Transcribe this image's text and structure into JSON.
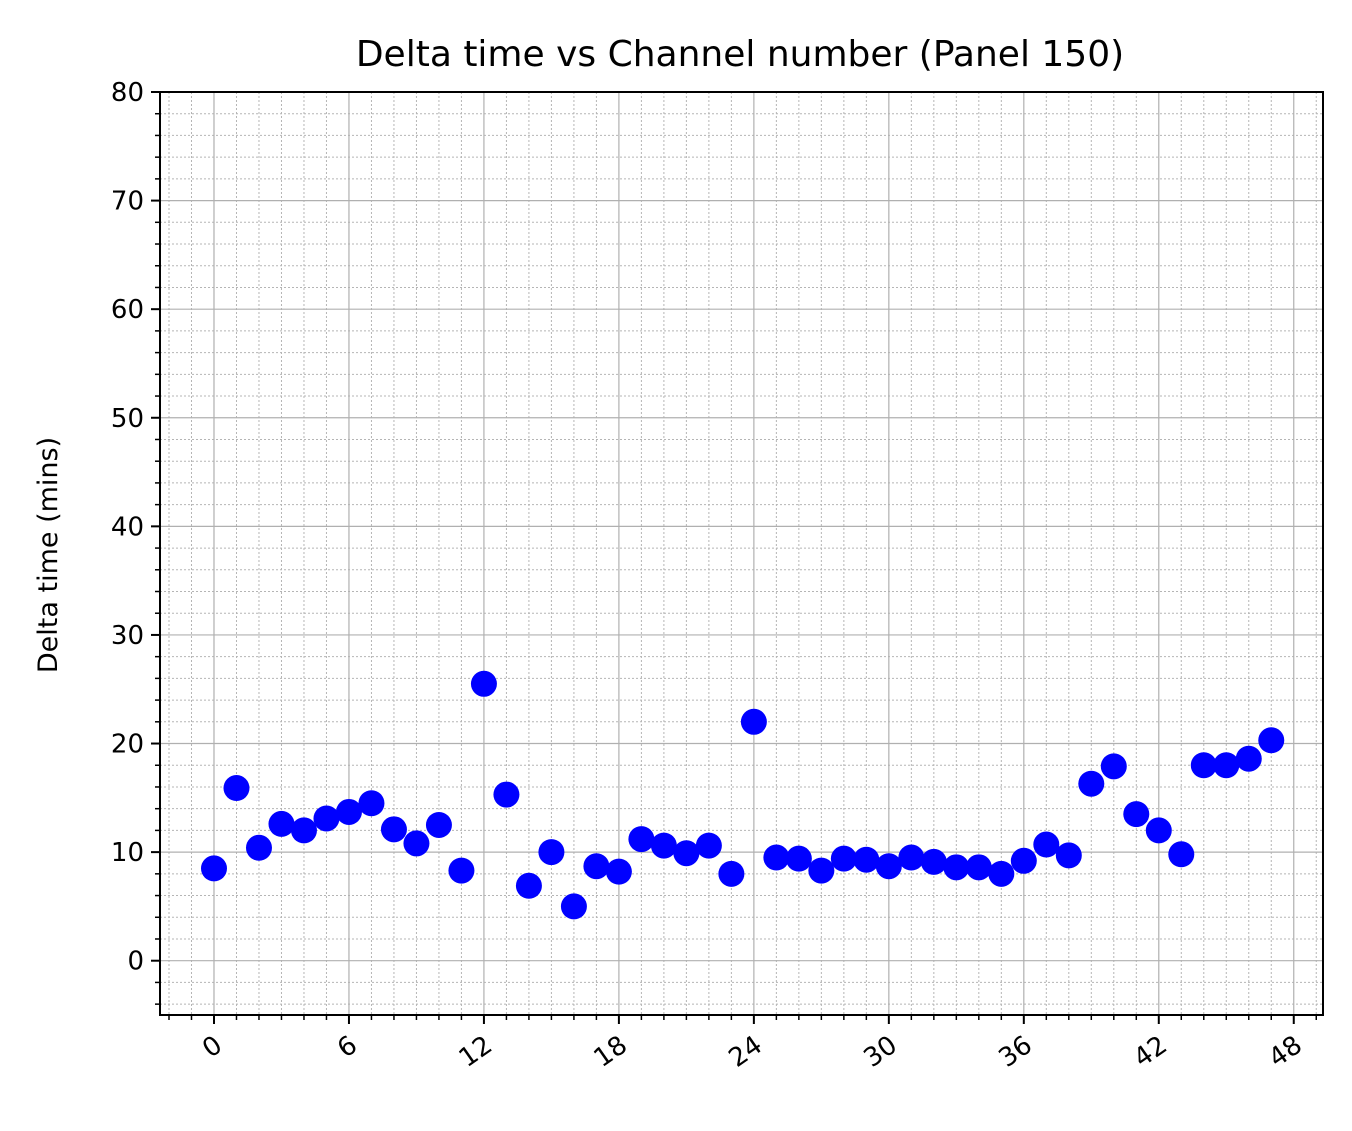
{
  "chart_data": {
    "type": "scatter",
    "title": "Delta time vs Channel number (Panel 150)",
    "xlabel": "",
    "ylabel": "Delta time (mins)",
    "xlim": [
      -2.4,
      49.3
    ],
    "ylim": [
      -5,
      80
    ],
    "x_ticks": [
      "0",
      "6",
      "12",
      "18",
      "24",
      "30",
      "36",
      "42",
      "48"
    ],
    "y_ticks": [
      "0",
      "10",
      "20",
      "30",
      "40",
      "50",
      "60",
      "70",
      "80"
    ],
    "grid": true,
    "marker_color": "#0000ff",
    "series": [
      {
        "name": "Delta time",
        "x": [
          0,
          1,
          2,
          3,
          4,
          5,
          6,
          7,
          8,
          9,
          10,
          11,
          12,
          13,
          14,
          15,
          16,
          17,
          18,
          19,
          20,
          21,
          22,
          23,
          24,
          25,
          26,
          27,
          28,
          29,
          30,
          31,
          32,
          33,
          34,
          35,
          36,
          37,
          38,
          39,
          40,
          41,
          42,
          43,
          44,
          45,
          46,
          47
        ],
        "values": [
          8.5,
          15.9,
          10.4,
          12.6,
          12.0,
          13.1,
          13.7,
          14.5,
          12.1,
          10.8,
          12.5,
          8.3,
          25.5,
          15.3,
          6.9,
          10.0,
          5.0,
          8.7,
          8.2,
          11.2,
          10.6,
          9.9,
          10.6,
          8.0,
          22.0,
          9.5,
          9.4,
          8.3,
          9.4,
          9.3,
          8.7,
          9.5,
          9.1,
          8.6,
          8.6,
          8.0,
          9.2,
          10.7,
          9.7,
          16.3,
          17.9,
          13.5,
          12.0,
          9.8,
          18.0,
          18.0,
          18.6,
          20.3
        ]
      }
    ]
  }
}
